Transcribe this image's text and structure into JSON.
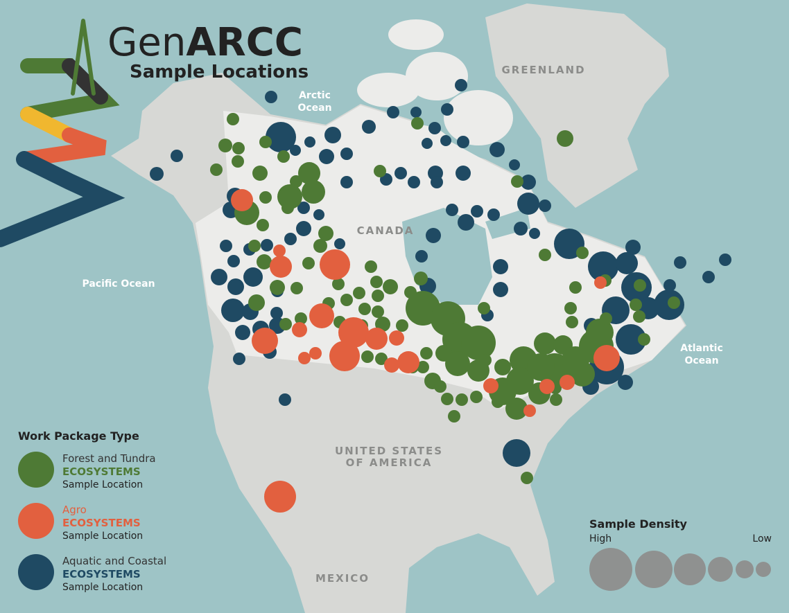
{
  "header": {
    "title_prefix": "Gen",
    "title_emphasis": "ARCC",
    "subtitle": "Sample Locations"
  },
  "map_labels": {
    "arctic_ocean": [
      "Arctic",
      "Ocean"
    ],
    "pacific_ocean": "Pacific Ocean",
    "atlantic_ocean": [
      "Atlantic",
      "Ocean"
    ],
    "greenland": "GREENLAND",
    "canada": "CANADA",
    "usa": [
      "UNITED STATES",
      "OF AMERICA"
    ],
    "mexico": "MEXICO"
  },
  "legend": {
    "title": "Work Package Type",
    "items": [
      {
        "name": "Forest and Tundra",
        "category": "ECOSYSTEMS",
        "detail": "Sample Location",
        "color": "#4e7a35"
      },
      {
        "name": "Agro",
        "category": "ECOSYSTEMS",
        "detail": "Sample Location",
        "color": "#e2603f"
      },
      {
        "name": "Aquatic and Coastal",
        "category": "ECOSYSTEMS",
        "detail": "Sample Location",
        "color": "#1f4a63"
      }
    ]
  },
  "density_legend": {
    "title": "Sample Density",
    "high": "High",
    "low": "Low"
  }
}
